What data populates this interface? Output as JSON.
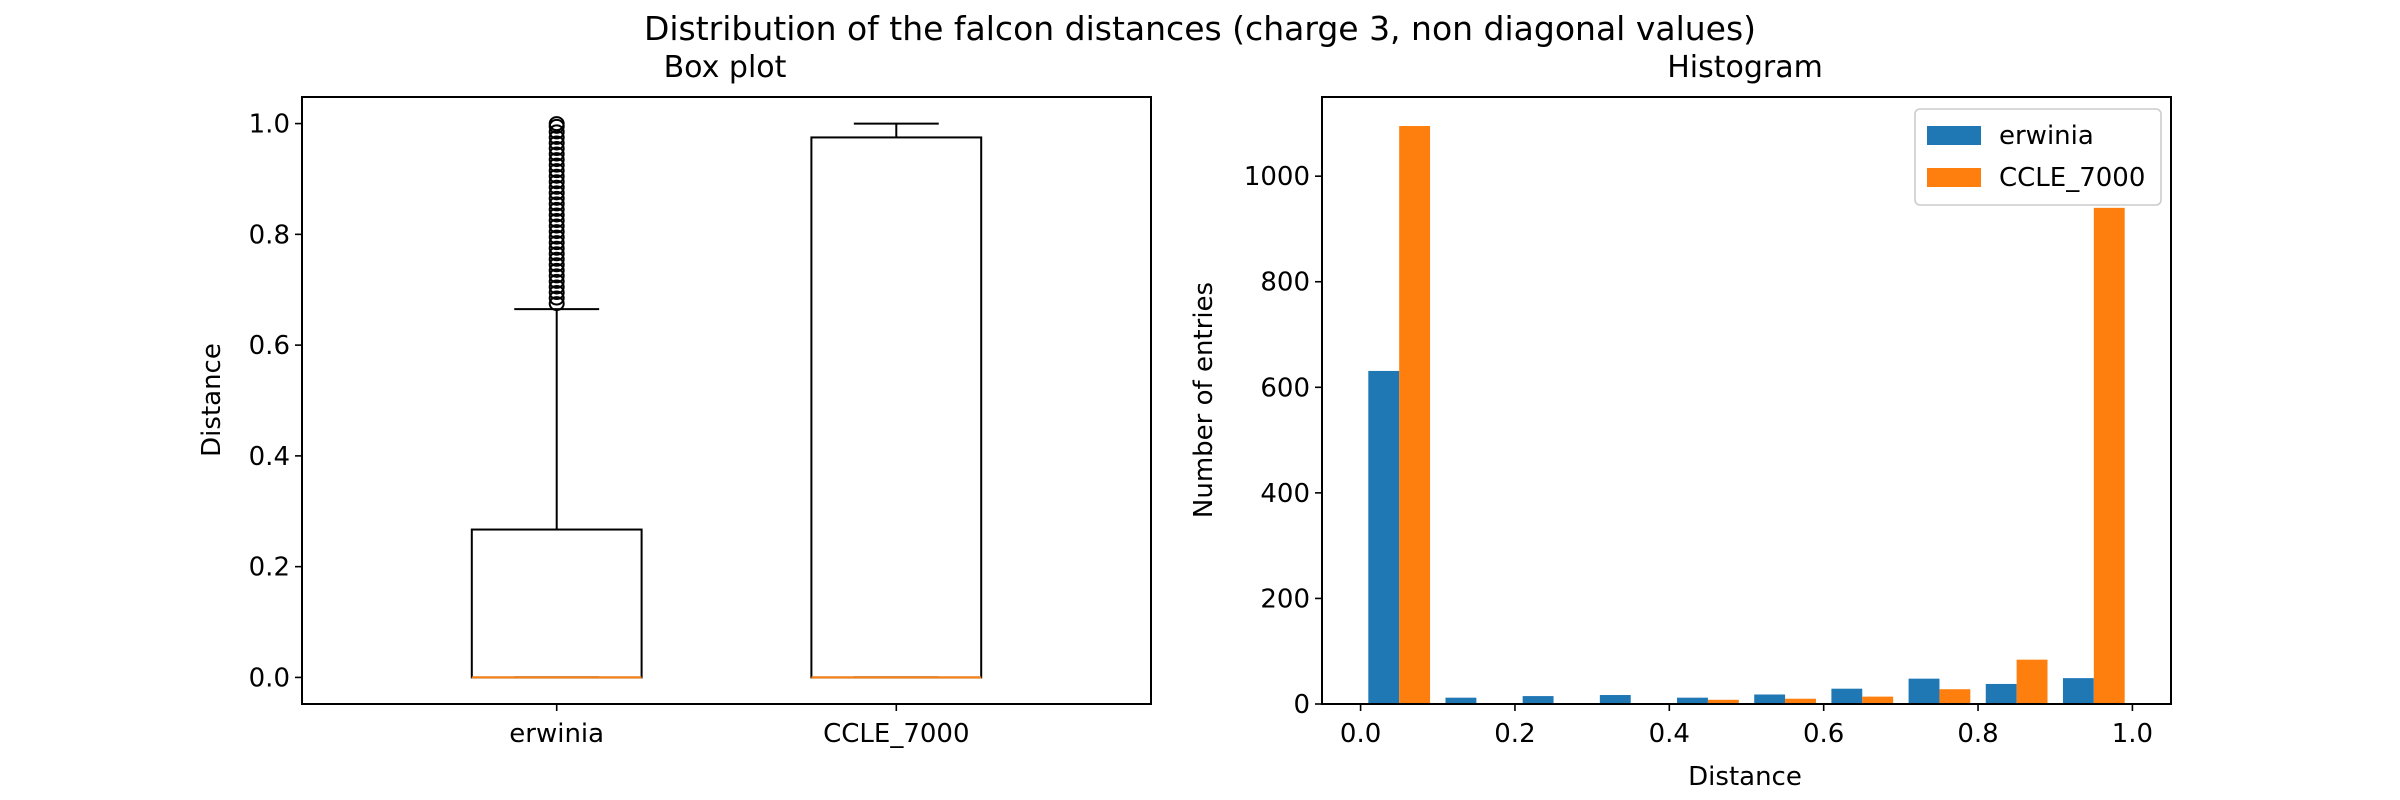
{
  "figure": {
    "suptitle": "Distribution of the falcon distances (charge 3, non diagonal values)"
  },
  "chart_data": [
    {
      "type": "box",
      "title": "Box plot",
      "xlabel": "",
      "ylabel": "Distance",
      "ylim": [
        -0.048,
        1.048
      ],
      "yticks": [
        0.0,
        0.2,
        0.4,
        0.6,
        0.8,
        1.0
      ],
      "ytick_labels": [
        "0.0",
        "0.2",
        "0.4",
        "0.6",
        "0.8",
        "1.0"
      ],
      "categories": [
        "erwinia",
        "CCLE_7000"
      ],
      "boxes": [
        {
          "name": "erwinia",
          "whisker_low": 0.0,
          "q1": 0.0,
          "median": 0.0,
          "q3": 0.267,
          "whisker_high": 0.665,
          "fliers": [
            0.675,
            0.685,
            0.695,
            0.705,
            0.715,
            0.725,
            0.735,
            0.745,
            0.755,
            0.765,
            0.775,
            0.785,
            0.795,
            0.805,
            0.815,
            0.825,
            0.835,
            0.845,
            0.855,
            0.865,
            0.875,
            0.885,
            0.895,
            0.905,
            0.915,
            0.925,
            0.935,
            0.945,
            0.955,
            0.965,
            0.975,
            0.985,
            0.995,
            1.0
          ]
        },
        {
          "name": "CCLE_7000",
          "whisker_low": 0.0,
          "q1": 0.0,
          "median": 0.0,
          "q3": 0.975,
          "whisker_high": 1.0,
          "fliers": []
        }
      ],
      "grid": false,
      "colors": {
        "box": "#000000",
        "median": "#ff7f0e"
      }
    },
    {
      "type": "bar",
      "title": "Histogram",
      "xlabel": "Distance",
      "ylabel": "Number of entries",
      "xlim": [
        -0.05,
        1.05
      ],
      "ylim": [
        0,
        1150
      ],
      "xticks": [
        0.0,
        0.2,
        0.4,
        0.6,
        0.8,
        1.0
      ],
      "xtick_labels": [
        "0.0",
        "0.2",
        "0.4",
        "0.6",
        "0.8",
        "1.0"
      ],
      "yticks": [
        0,
        200,
        400,
        600,
        800,
        1000
      ],
      "ytick_labels": [
        "0",
        "200",
        "400",
        "600",
        "800",
        "1000"
      ],
      "bin_edges": [
        0.0,
        0.1,
        0.2,
        0.3,
        0.4,
        0.5,
        0.6,
        0.7,
        0.8,
        0.9,
        1.0
      ],
      "series": [
        {
          "name": "erwinia",
          "color": "#1f77b4",
          "values": [
            631,
            12,
            15,
            17,
            12,
            18,
            29,
            48,
            38,
            49
          ]
        },
        {
          "name": "CCLE_7000",
          "color": "#ff7f0e",
          "values": [
            1095,
            0,
            0,
            0,
            8,
            10,
            14,
            28,
            84,
            940
          ]
        }
      ],
      "legend": {
        "position": "top-right",
        "entries": [
          "erwinia",
          "CCLE_7000"
        ]
      },
      "grid": false
    }
  ]
}
